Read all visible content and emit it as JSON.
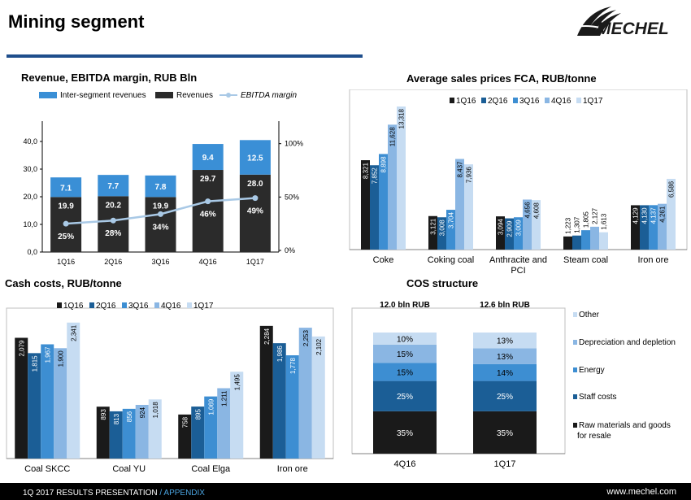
{
  "header": {
    "title": "Mining segment",
    "logo_text": "MECHEL"
  },
  "footer": {
    "left_main": "1Q 2017 RESULTS PRESENTATION",
    "left_sep": " / ",
    "left_section": "APPENDIX",
    "right": "www.mechel.com"
  },
  "colors": {
    "black": "#2b2b2b",
    "q1": "#1a1a1a",
    "q2": "#1b5e96",
    "q3": "#3d8ed2",
    "q4": "#8ab6e3",
    "q5": "#c6dcf2",
    "inter": "#3a8fd6",
    "line": "#a9c9e6",
    "rule": "#1f4e8c"
  },
  "chart_data": [
    {
      "type": "bar",
      "title": "Revenue, EBITDA margin, RUB Bln",
      "categories": [
        "1Q16",
        "2Q16",
        "3Q16",
        "4Q16",
        "1Q17"
      ],
      "series": [
        {
          "name": "Revenues",
          "values": [
            19.9,
            20.2,
            19.9,
            29.7,
            28.0
          ],
          "labels": [
            "19.9",
            "20.2",
            "19.9",
            "29.7",
            "28.0"
          ]
        },
        {
          "name": "Inter-segment revenues",
          "values": [
            7.1,
            7.7,
            7.8,
            9.4,
            12.5
          ],
          "labels": [
            "7.1",
            "7.7",
            "7.8",
            "9.4",
            "12.5"
          ]
        },
        {
          "name": "EBITDA margin",
          "values": [
            25,
            28,
            34,
            46,
            49
          ],
          "labels": [
            "25%",
            "28%",
            "34%",
            "46%",
            "49%"
          ]
        }
      ],
      "ylim": [
        0,
        45
      ],
      "y_ticks": [
        "0,0",
        "10,0",
        "20,0",
        "30,0",
        "40,0"
      ],
      "y2lim": [
        0,
        115
      ],
      "y2_ticks": [
        "0%",
        "50%",
        "100%"
      ],
      "legend_position": "top"
    },
    {
      "type": "bar",
      "title": "Average sales prices FCA, RUB/tonne",
      "categories": [
        "Coke",
        "Coking coal",
        "Anthracite and PCI",
        "Steam coal",
        "Iron ore"
      ],
      "series": [
        {
          "name": "1Q16",
          "values": [
            8321,
            3121,
            3094,
            1223,
            4129
          ],
          "labels": [
            "8,321",
            "3,121",
            "3,094",
            "1,223",
            "4,129"
          ]
        },
        {
          "name": "2Q16",
          "values": [
            7852,
            3008,
            2909,
            1307,
            4130
          ],
          "labels": [
            "7,852",
            "3,008",
            "2,909",
            "1,307",
            "4,130"
          ]
        },
        {
          "name": "3Q16",
          "values": [
            8898,
            3704,
            3009,
            1805,
            4137
          ],
          "labels": [
            "8,898",
            "3,704",
            "3,009",
            "1,805",
            "4,137"
          ]
        },
        {
          "name": "4Q16",
          "values": [
            11628,
            8437,
            4656,
            2127,
            4261
          ],
          "labels": [
            "11,628",
            "8,437",
            "4,656",
            "2,127",
            "4,261"
          ]
        },
        {
          "name": "1Q17",
          "values": [
            13318,
            7936,
            4608,
            1613,
            6586
          ],
          "labels": [
            "13,318",
            "7,936",
            "4,608",
            "1,613",
            "6,586"
          ]
        }
      ],
      "ylim": [
        0,
        14000
      ],
      "legend_position": "top-right"
    },
    {
      "type": "bar",
      "title": "Cash costs, RUB/tonne",
      "categories": [
        "Coal SKCC",
        "Coal YU",
        "Coal Elga",
        "Iron ore"
      ],
      "series": [
        {
          "name": "1Q16",
          "values": [
            2079,
            893,
            758,
            2284
          ],
          "labels": [
            "2,079",
            "893",
            "758",
            "2,284"
          ]
        },
        {
          "name": "2Q16",
          "values": [
            1815,
            813,
            895,
            1986
          ],
          "labels": [
            "1,815",
            "813",
            "895",
            "1,986"
          ]
        },
        {
          "name": "3Q16",
          "values": [
            1967,
            856,
            1069,
            1778
          ],
          "labels": [
            "1,967",
            "856",
            "1,069",
            "1,778"
          ]
        },
        {
          "name": "4Q16",
          "values": [
            1900,
            924,
            1211,
            2253
          ],
          "labels": [
            "1,900",
            "924",
            "1,211",
            "2,253"
          ]
        },
        {
          "name": "1Q17",
          "values": [
            2341,
            1018,
            1495,
            2102
          ],
          "labels": [
            "2,341",
            "1,018",
            "1,495",
            "2,102"
          ]
        }
      ],
      "ylim": [
        0,
        2450
      ],
      "legend_position": "top"
    },
    {
      "type": "bar",
      "title": "COS structure",
      "categories": [
        "4Q16",
        "1Q17"
      ],
      "totals": [
        "12.0 bln RUB",
        "12.6 bln RUB"
      ],
      "series": [
        {
          "name": "Raw materials and goods for resale",
          "values": [
            35,
            35
          ],
          "labels": [
            "35%",
            "35%"
          ]
        },
        {
          "name": "Staff costs",
          "values": [
            25,
            25
          ],
          "labels": [
            "25%",
            "25%"
          ]
        },
        {
          "name": "Energy",
          "values": [
            15,
            14
          ],
          "labels": [
            "15%",
            "14%"
          ]
        },
        {
          "name": "Depreciation and depletion",
          "values": [
            15,
            13
          ],
          "labels": [
            "15%",
            "13%"
          ]
        },
        {
          "name": "Other",
          "values": [
            10,
            13
          ],
          "labels": [
            "10%",
            "13%"
          ]
        }
      ],
      "ylim": [
        0,
        100
      ],
      "legend_position": "right"
    }
  ]
}
